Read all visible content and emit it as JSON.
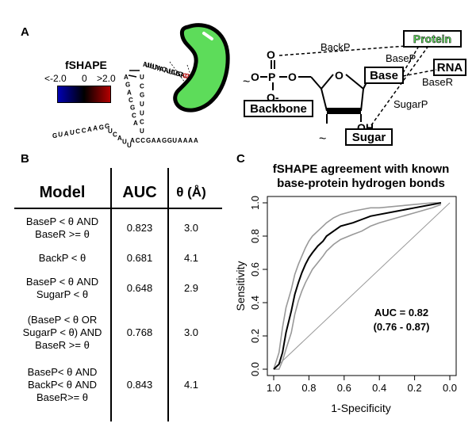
{
  "panels": {
    "a": "A",
    "b": "B",
    "c": "C"
  },
  "fshape_legend": {
    "title": "fSHAPE",
    "min": "<-2.0",
    "mid": "0",
    "max": ">2.0",
    "colors": {
      "low": "#0000b4",
      "mid": "#000000",
      "high": "#b40000"
    }
  },
  "rna_sequence": {
    "strand_left": "GUAUCCAAGG",
    "strand_bottom": "UCAUU",
    "strand_right": "ACCGAAGGUAAAA",
    "stem_left": "ACGCAGA",
    "stem_right": "UCUUGCU",
    "loop": "AUUUUAAACAUUCUGGACCC"
  },
  "molecule": {
    "backbone": "Backbone",
    "base": "Base",
    "sugar": "Sugar",
    "protein": "Protein",
    "rna": "RNA",
    "backp": "BackP",
    "basep": "BaseP",
    "baser": "BaseR",
    "sugarp": "SugarP",
    "atoms": {
      "p": "P",
      "o": "O",
      "oh": "OH",
      "ominus": "O-",
      "tilde": "~"
    }
  },
  "table": {
    "headers": {
      "model": "Model",
      "auc": "AUC",
      "theta": "θ (Å)"
    },
    "rows": [
      {
        "model": "BaseP < θ AND\nBaseR >= θ",
        "auc": "0.823",
        "theta": "3.0"
      },
      {
        "model": "BackP < θ",
        "auc": "0.681",
        "theta": "4.1"
      },
      {
        "model": "BaseP < θ AND\nSugarP < θ",
        "auc": "0.648",
        "theta": "2.9"
      },
      {
        "model": "(BaseP < θ OR\nSugarP < θ) AND\nBaseR >= θ",
        "auc": "0.768",
        "theta": "3.0"
      },
      {
        "model": "BaseP< θ AND\nBackP< θ AND\nBaseR>= θ",
        "auc": "0.843",
        "theta": "4.1"
      }
    ]
  },
  "chart_data": {
    "type": "line",
    "title": "fSHAPE agreement with known base-protein hydrogen bonds",
    "title_line1": "fSHAPE agreement with known",
    "title_line2": "base-protein hydrogen bonds",
    "xlabel": "1-Specificity",
    "ylabel": "Sensitivity",
    "xlim": [
      1.0,
      0.0
    ],
    "ylim": [
      0.0,
      1.0
    ],
    "x_ticks": [
      "1.0",
      "0.8",
      "0.6",
      "0.4",
      "0.2",
      "0.0"
    ],
    "y_ticks": [
      "0.0",
      "0.2",
      "0.4",
      "0.6",
      "0.8",
      "1.0"
    ],
    "annotation_line1": "AUC = 0.82",
    "annotation_line2": "(0.76 - 0.87)",
    "series": [
      {
        "name": "ROC",
        "color": "#000000",
        "points": [
          [
            1.0,
            0.0
          ],
          [
            0.97,
            0.03
          ],
          [
            0.95,
            0.1
          ],
          [
            0.93,
            0.22
          ],
          [
            0.9,
            0.35
          ],
          [
            0.88,
            0.45
          ],
          [
            0.86,
            0.52
          ],
          [
            0.84,
            0.58
          ],
          [
            0.82,
            0.63
          ],
          [
            0.8,
            0.67
          ],
          [
            0.78,
            0.7
          ],
          [
            0.75,
            0.74
          ],
          [
            0.72,
            0.77
          ],
          [
            0.7,
            0.8
          ],
          [
            0.66,
            0.83
          ],
          [
            0.62,
            0.86
          ],
          [
            0.55,
            0.88
          ],
          [
            0.5,
            0.9
          ],
          [
            0.45,
            0.92
          ],
          [
            0.4,
            0.93
          ],
          [
            0.3,
            0.95
          ],
          [
            0.2,
            0.97
          ],
          [
            0.1,
            0.99
          ],
          [
            0.05,
            1.0
          ]
        ]
      },
      {
        "name": "CI upper",
        "color": "#999999",
        "points": [
          [
            1.0,
            0.0
          ],
          [
            0.97,
            0.1
          ],
          [
            0.95,
            0.25
          ],
          [
            0.93,
            0.37
          ],
          [
            0.9,
            0.48
          ],
          [
            0.88,
            0.57
          ],
          [
            0.86,
            0.63
          ],
          [
            0.84,
            0.68
          ],
          [
            0.82,
            0.73
          ],
          [
            0.8,
            0.77
          ],
          [
            0.78,
            0.8
          ],
          [
            0.75,
            0.83
          ],
          [
            0.72,
            0.86
          ],
          [
            0.7,
            0.88
          ],
          [
            0.66,
            0.91
          ],
          [
            0.62,
            0.93
          ],
          [
            0.55,
            0.95
          ],
          [
            0.5,
            0.96
          ],
          [
            0.45,
            0.97
          ],
          [
            0.4,
            0.97
          ],
          [
            0.3,
            0.98
          ],
          [
            0.2,
            0.99
          ],
          [
            0.1,
            1.0
          ],
          [
            0.05,
            1.0
          ]
        ]
      },
      {
        "name": "CI lower",
        "color": "#999999",
        "points": [
          [
            1.0,
            0.0
          ],
          [
            0.97,
            0.0
          ],
          [
            0.95,
            0.05
          ],
          [
            0.93,
            0.12
          ],
          [
            0.9,
            0.22
          ],
          [
            0.88,
            0.33
          ],
          [
            0.86,
            0.41
          ],
          [
            0.84,
            0.47
          ],
          [
            0.82,
            0.52
          ],
          [
            0.8,
            0.56
          ],
          [
            0.78,
            0.6
          ],
          [
            0.75,
            0.64
          ],
          [
            0.72,
            0.68
          ],
          [
            0.7,
            0.71
          ],
          [
            0.66,
            0.75
          ],
          [
            0.62,
            0.78
          ],
          [
            0.55,
            0.81
          ],
          [
            0.5,
            0.83
          ],
          [
            0.45,
            0.86
          ],
          [
            0.4,
            0.88
          ],
          [
            0.3,
            0.91
          ],
          [
            0.2,
            0.94
          ],
          [
            0.1,
            0.97
          ],
          [
            0.05,
            0.99
          ]
        ]
      }
    ]
  }
}
